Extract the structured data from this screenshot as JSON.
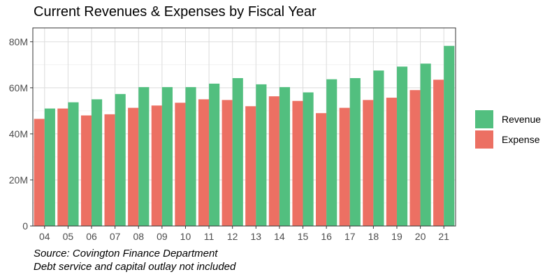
{
  "chart_data": {
    "type": "bar",
    "title": "Current Revenues & Expenses by Fiscal Year",
    "xlabel": "",
    "ylabel": "",
    "categories": [
      "04",
      "05",
      "06",
      "07",
      "08",
      "09",
      "10",
      "11",
      "12",
      "13",
      "14",
      "15",
      "16",
      "17",
      "18",
      "19",
      "20",
      "21"
    ],
    "series": [
      {
        "name": "Expense",
        "color": "#ec7063",
        "values": [
          46.5,
          51,
          48,
          48.5,
          51.3,
          52.3,
          53.5,
          55,
          54.7,
          52,
          56.3,
          54.3,
          49,
          51.3,
          54.7,
          55.7,
          59,
          63.5
        ]
      },
      {
        "name": "Revenue",
        "color": "#52bf7f",
        "values": [
          51,
          53.7,
          55,
          57.3,
          60.3,
          60.3,
          60.3,
          61.8,
          64.2,
          61.5,
          60.3,
          58,
          63.7,
          64.2,
          67.5,
          69.2,
          70.5,
          78.2
        ]
      }
    ],
    "ylim": [
      0,
      86
    ],
    "yticks": [
      0,
      20,
      40,
      60,
      80
    ],
    "ytick_labels": [
      "0",
      "20M",
      "40M",
      "60M",
      "80M"
    ],
    "grid": true,
    "legend": {
      "placement": "right",
      "entries": [
        "Revenue",
        "Expense"
      ]
    },
    "captions": [
      "Source: Covington Finance Department",
      "Debt service and capital outlay not included"
    ]
  }
}
